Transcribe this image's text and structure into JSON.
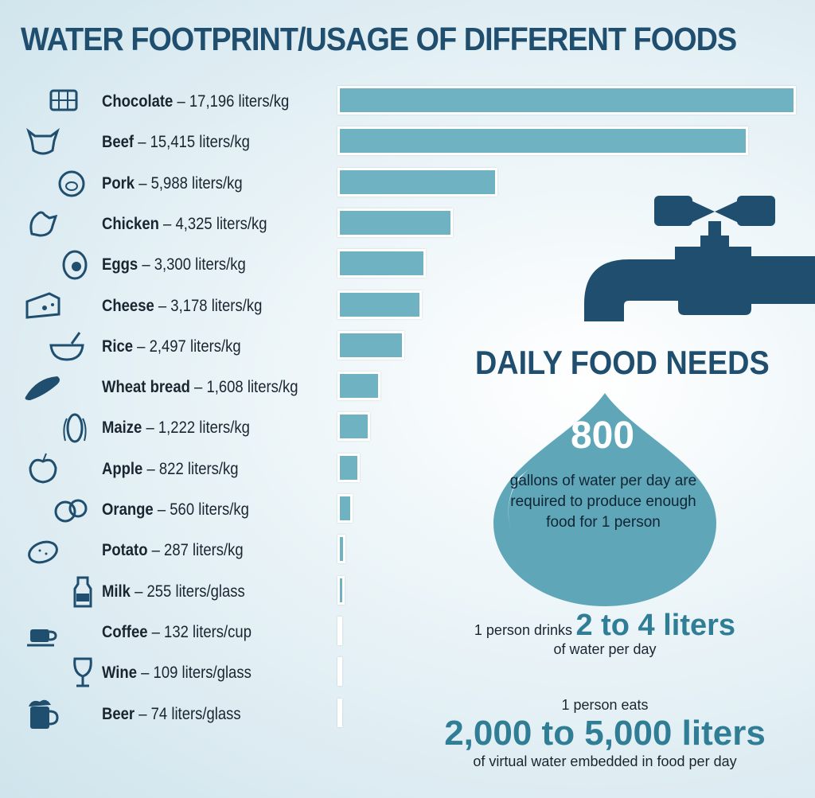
{
  "title": "WATER FOOTPRINT/USAGE OF DIFFERENT FOODS",
  "chart_data": {
    "type": "bar",
    "orientation": "horizontal",
    "title": "WATER FOOTPRINT/USAGE OF DIFFERENT FOODS",
    "xlabel": "",
    "ylabel": "",
    "grid": false,
    "categories": [
      "Chocolate",
      "Beef",
      "Pork",
      "Chicken",
      "Eggs",
      "Cheese",
      "Rice",
      "Wheat bread",
      "Maize",
      "Apple",
      "Orange",
      "Potato",
      "Milk",
      "Coffee",
      "Wine",
      "Beer"
    ],
    "values": [
      17196,
      15415,
      5988,
      4325,
      3300,
      3178,
      2497,
      1608,
      1222,
      822,
      560,
      287,
      255,
      132,
      109,
      74
    ],
    "labels": [
      {
        "name": "Chocolate",
        "text": "17,196 liters/kg"
      },
      {
        "name": "Beef",
        "text": "15,415 liters/kg"
      },
      {
        "name": "Pork",
        "text": "5,988 liters/kg"
      },
      {
        "name": "Chicken",
        "text": "4,325 liters/kg"
      },
      {
        "name": "Eggs",
        "text": "3,300 liters/kg"
      },
      {
        "name": "Cheese",
        "text": "3,178 liters/kg"
      },
      {
        "name": "Rice",
        "text": "2,497 liters/kg"
      },
      {
        "name": "Wheat bread",
        "text": "1,608 liters/kg"
      },
      {
        "name": "Maize",
        "text": "1,222 liters/kg"
      },
      {
        "name": "Apple",
        "text": "822 liters/kg"
      },
      {
        "name": "Orange",
        "text": "560 liters/kg"
      },
      {
        "name": "Potato",
        "text": "287 liters/kg"
      },
      {
        "name": "Milk",
        "text": "255 liters/glass"
      },
      {
        "name": "Coffee",
        "text": "132 liters/cup"
      },
      {
        "name": "Wine",
        "text": "109 liters/glass"
      },
      {
        "name": "Beer",
        "text": "74 liters/glass"
      }
    ]
  },
  "icons": [
    "chocolate-icon",
    "cow-icon",
    "pig-icon",
    "chicken-icon",
    "egg-icon",
    "cheese-icon",
    "rice-bowl-icon",
    "bread-icon",
    "corn-icon",
    "apple-icon",
    "orange-icon",
    "potato-icon",
    "milk-bottle-icon",
    "coffee-cup-icon",
    "wine-glass-icon",
    "beer-mug-icon"
  ],
  "colors": {
    "bar": "#6fb3c2",
    "title": "#1f4e6e",
    "icon": "#1f4e6e",
    "highlight": "#2f7e96",
    "drop": "#5fa7b8"
  },
  "daily": {
    "title": "DAILY FOOD NEEDS",
    "drop_number": "800",
    "drop_text": "gallons of water per day are required to produce enough food for 1 person",
    "drinks_pre": "1 person drinks",
    "drinks_big": "2 to 4 liters",
    "drinks_post": "of water per day",
    "eats_pre": "1 person eats",
    "eats_big": "2,000 to 5,000 liters",
    "eats_post": "of virtual water embedded in food per day"
  }
}
